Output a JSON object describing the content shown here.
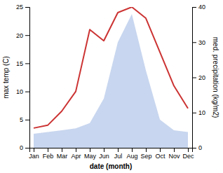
{
  "chart_data": {
    "type": "line",
    "categories": [
      "Jan",
      "Feb",
      "Mar",
      "Apr",
      "May",
      "Jun",
      "Jul",
      "Aug",
      "Sep",
      "Oct",
      "Nov",
      "Dec"
    ],
    "xlabel": "date (month)",
    "ylabel": "max temp (C)",
    "y2label": "med. precipitation (kg/m2)",
    "ylim": [
      0,
      25
    ],
    "yticks": [
      0,
      5,
      10,
      15,
      20,
      25
    ],
    "y2lim": [
      0,
      40
    ],
    "y2ticks": [
      0,
      10,
      20,
      30,
      40
    ],
    "series": [
      {
        "type": "area",
        "axis": "y2",
        "color": "#b0c4e8",
        "values": [
          4.0,
          4.5,
          5.0,
          5.5,
          7.0,
          14.0,
          30.0,
          38.0,
          22.0,
          8.0,
          5.0,
          4.5
        ]
      },
      {
        "type": "line",
        "color": "#cc3333",
        "values": [
          3.5,
          4.0,
          6.5,
          10.0,
          21.0,
          19.0,
          24.0,
          25.0,
          23.0,
          17.0,
          11.0,
          7.0
        ]
      }
    ]
  }
}
